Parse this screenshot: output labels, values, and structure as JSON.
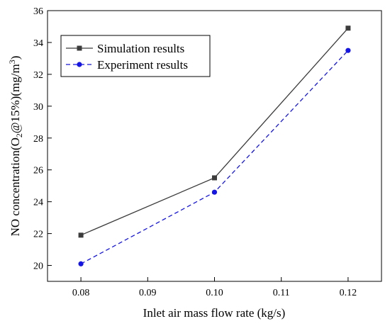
{
  "chart_data": {
    "type": "line",
    "xlabel": "Inlet air mass flow rate (kg/s)",
    "ylabel": {
      "prefix": "NO concentration(O",
      "sub": "2",
      "middle": "@15%)(mg/m",
      "sup": "3",
      "suffix": ")"
    },
    "xlim": [
      0.075,
      0.125
    ],
    "ylim": [
      19,
      36
    ],
    "x_ticks": [
      "0.08",
      "0.09",
      "0.10",
      "0.11",
      "0.12"
    ],
    "x_tick_values": [
      0.08,
      0.09,
      0.1,
      0.11,
      0.12
    ],
    "y_ticks": [
      "20",
      "22",
      "24",
      "26",
      "28",
      "30",
      "32",
      "34",
      "36"
    ],
    "y_tick_values": [
      20,
      22,
      24,
      26,
      28,
      30,
      32,
      34,
      36
    ],
    "grid": false,
    "legend_position": "top-left",
    "series": [
      {
        "name": "Simulation results",
        "x": [
          0.08,
          0.1,
          0.12
        ],
        "y": [
          21.9,
          25.5,
          34.9
        ],
        "color": "#3c3c3c",
        "marker": "square",
        "line_style": "solid"
      },
      {
        "name": "Experiment results",
        "x": [
          0.08,
          0.1,
          0.12
        ],
        "y": [
          20.1,
          24.6,
          33.5
        ],
        "color": "#1515e6",
        "marker": "circle",
        "line_style": "dashed"
      }
    ]
  }
}
